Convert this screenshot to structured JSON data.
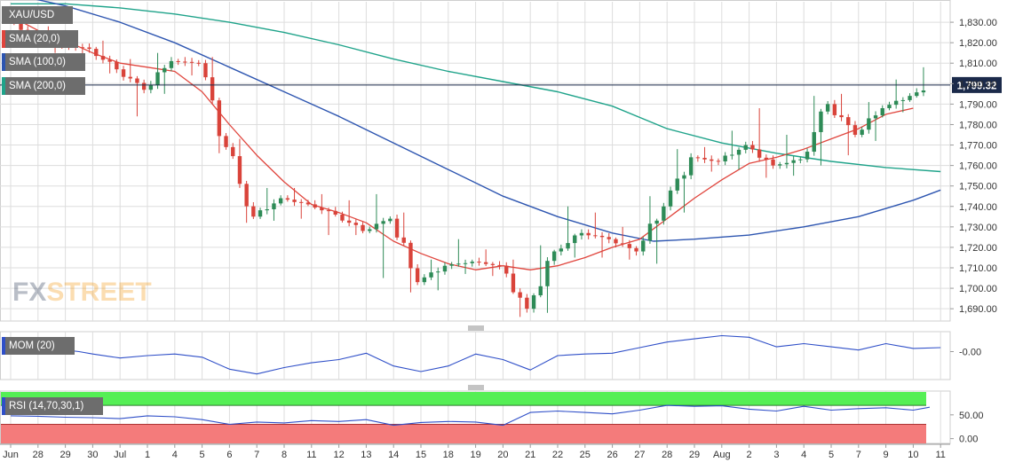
{
  "symbol": "XAU/USD",
  "watermark": {
    "part1": "FX",
    "part2": "STREET"
  },
  "colors": {
    "up": "#2e8b57",
    "down": "#d9433a",
    "sma20": "#e0453d",
    "sma100": "#2d55b0",
    "sma200": "#1fa38a",
    "mom": "#2f4fc8",
    "rsi_line": "#2f4fc8",
    "overbought": "#55ef55",
    "oversold": "#f47b7b",
    "price_line": "#1b2a4a",
    "grid": "#dddddd"
  },
  "price_label": "1,799.32",
  "chart_data": [
    {
      "type": "candlestick",
      "title": "XAU/USD",
      "series_names": [
        "SMA (20,0)",
        "SMA (100,0)",
        "SMA (200,0)"
      ],
      "ylim": [
        1684,
        1840
      ],
      "y_ticks": [
        "1,830.00",
        "1,820.00",
        "1,810.00",
        "1,800.00",
        "1,790.00",
        "1,780.00",
        "1,770.00",
        "1,760.00",
        "1,750.00",
        "1,740.00",
        "1,730.00",
        "1,720.00",
        "1,710.00",
        "1,700.00",
        "1,690.00"
      ],
      "y_tick_values": [
        1830,
        1820,
        1810,
        1800,
        1790,
        1780,
        1770,
        1760,
        1750,
        1740,
        1730,
        1720,
        1710,
        1700,
        1690
      ],
      "x_labels": [
        "Jun",
        "28",
        "29",
        "30",
        "Jul",
        "1",
        "4",
        "5",
        "6",
        "7",
        "8",
        "11",
        "12",
        "13",
        "14",
        "15",
        "18",
        "19",
        "20",
        "21",
        "22",
        "25",
        "26",
        "27",
        "28",
        "29",
        "Aug",
        "2",
        "3",
        "4",
        "5",
        "7",
        "9",
        "10",
        "11"
      ],
      "x_label_days": [
        0,
        1,
        2,
        3,
        4,
        5,
        6,
        7,
        8,
        9,
        10,
        11,
        12,
        13,
        14,
        15,
        16,
        17,
        18,
        19,
        20,
        21,
        22,
        23,
        24,
        25,
        26,
        27,
        28,
        29,
        30,
        31,
        32,
        33,
        34
      ],
      "last_price": 1799.32,
      "day_ohlc": [
        [
          1832,
          1836,
          1818,
          1822
        ],
        [
          1822,
          1828,
          1815,
          1819
        ],
        [
          1819,
          1823,
          1813,
          1817
        ],
        [
          1817,
          1821,
          1805,
          1807
        ],
        [
          1807,
          1812,
          1784,
          1797
        ],
        [
          1797,
          1815,
          1795,
          1811
        ],
        [
          1811,
          1813,
          1804,
          1810
        ],
        [
          1810,
          1813,
          1766,
          1769
        ],
        [
          1769,
          1773,
          1732,
          1735
        ],
        [
          1735,
          1749,
          1733,
          1744
        ],
        [
          1744,
          1749,
          1734,
          1741
        ],
        [
          1741,
          1746,
          1726,
          1736
        ],
        [
          1736,
          1743,
          1726,
          1728
        ],
        [
          1728,
          1746,
          1705,
          1734
        ],
        [
          1734,
          1737,
          1698,
          1703
        ],
        [
          1703,
          1714,
          1699,
          1711
        ],
        [
          1711,
          1724,
          1707,
          1713
        ],
        [
          1713,
          1719,
          1706,
          1711
        ],
        [
          1711,
          1714,
          1686,
          1690
        ],
        [
          1690,
          1721,
          1688,
          1718
        ],
        [
          1718,
          1740,
          1715,
          1727
        ],
        [
          1727,
          1737,
          1715,
          1724
        ],
        [
          1724,
          1730,
          1714,
          1718
        ],
        [
          1718,
          1745,
          1712,
          1740
        ],
        [
          1740,
          1768,
          1737,
          1764
        ],
        [
          1764,
          1769,
          1757,
          1762
        ],
        [
          1762,
          1777,
          1758,
          1770
        ],
        [
          1770,
          1788,
          1754,
          1760
        ],
        [
          1760,
          1775,
          1755,
          1763
        ],
        [
          1763,
          1794,
          1760,
          1790
        ],
        [
          1790,
          1795,
          1765,
          1775
        ],
        [
          1775,
          1791,
          1772,
          1788
        ],
        [
          1788,
          1802,
          1786,
          1794
        ],
        [
          1794,
          1808,
          1789,
          1799
        ]
      ],
      "sma_20_points": [
        [
          0,
          1833
        ],
        [
          1,
          1826
        ],
        [
          2,
          1821
        ],
        [
          3,
          1815
        ],
        [
          4,
          1810
        ],
        [
          5,
          1808
        ],
        [
          6,
          1806
        ],
        [
          7,
          1796
        ],
        [
          8,
          1780
        ],
        [
          9,
          1765
        ],
        [
          10,
          1752
        ],
        [
          11,
          1741
        ],
        [
          12,
          1737
        ],
        [
          13,
          1732
        ],
        [
          14,
          1723
        ],
        [
          15,
          1717
        ],
        [
          16,
          1712
        ],
        [
          17,
          1709
        ],
        [
          18,
          1711
        ],
        [
          19,
          1709
        ],
        [
          20,
          1711
        ],
        [
          21,
          1715
        ],
        [
          22,
          1720
        ],
        [
          23,
          1724
        ],
        [
          24,
          1734
        ],
        [
          25,
          1744
        ],
        [
          26,
          1753
        ],
        [
          27,
          1761
        ],
        [
          28,
          1764
        ],
        [
          29,
          1768
        ],
        [
          30,
          1773
        ],
        [
          31,
          1778
        ],
        [
          32,
          1785
        ],
        [
          33,
          1788
        ]
      ],
      "sma_100_points": [
        [
          0,
          1844
        ],
        [
          2,
          1838
        ],
        [
          4,
          1830
        ],
        [
          6,
          1820
        ],
        [
          8,
          1808
        ],
        [
          10,
          1796
        ],
        [
          12,
          1784
        ],
        [
          14,
          1771
        ],
        [
          16,
          1758
        ],
        [
          18,
          1745
        ],
        [
          20,
          1735
        ],
        [
          22,
          1727
        ],
        [
          23.5,
          1723
        ],
        [
          25,
          1724
        ],
        [
          27,
          1726
        ],
        [
          29,
          1730
        ],
        [
          31,
          1735
        ],
        [
          33,
          1743
        ],
        [
          34,
          1748
        ]
      ],
      "sma_200_points": [
        [
          0,
          1839
        ],
        [
          2,
          1839
        ],
        [
          4,
          1837
        ],
        [
          6,
          1834
        ],
        [
          8,
          1830
        ],
        [
          10,
          1825
        ],
        [
          12,
          1819
        ],
        [
          14,
          1812
        ],
        [
          16,
          1806
        ],
        [
          18,
          1801
        ],
        [
          20,
          1796
        ],
        [
          22,
          1789
        ],
        [
          24,
          1778
        ],
        [
          26,
          1771
        ],
        [
          28,
          1766
        ],
        [
          30,
          1762
        ],
        [
          32,
          1759
        ],
        [
          34,
          1757
        ]
      ]
    },
    {
      "type": "line",
      "title": "MOM (20)",
      "series_names": [
        "MOM (20)"
      ],
      "y_ticks": [
        "-0.00"
      ],
      "y_tick_values": [
        0
      ],
      "ylim": [
        -35,
        25
      ],
      "points": [
        [
          0,
          2
        ],
        [
          1,
          1
        ],
        [
          2,
          2
        ],
        [
          2.5,
          0
        ],
        [
          3,
          -3
        ],
        [
          4,
          -8
        ],
        [
          5,
          -5
        ],
        [
          6,
          -3
        ],
        [
          7,
          -7
        ],
        [
          8,
          -22
        ],
        [
          9,
          -28
        ],
        [
          10,
          -20
        ],
        [
          11,
          -14
        ],
        [
          12,
          -10
        ],
        [
          13,
          -2
        ],
        [
          14,
          -18
        ],
        [
          15,
          -25
        ],
        [
          16,
          -18
        ],
        [
          17,
          -3
        ],
        [
          18,
          -10
        ],
        [
          19,
          -23
        ],
        [
          20,
          -5
        ],
        [
          21,
          -3
        ],
        [
          22,
          -2
        ],
        [
          23,
          5
        ],
        [
          24,
          12
        ],
        [
          25,
          16
        ],
        [
          26,
          20
        ],
        [
          27,
          18
        ],
        [
          28,
          6
        ],
        [
          29,
          10
        ],
        [
          30,
          6
        ],
        [
          31,
          2
        ],
        [
          32,
          10
        ],
        [
          33,
          4
        ],
        [
          34,
          5
        ]
      ]
    },
    {
      "type": "line",
      "title": "RSI (14,70,30,1)",
      "series_names": [
        "RSI (14,70,30,1)"
      ],
      "y_ticks": [
        "50.00",
        "0.00"
      ],
      "y_tick_values": [
        50,
        0
      ],
      "ylim": [
        -10,
        100
      ],
      "overbought_level": 70,
      "oversold_level": 30,
      "points": [
        [
          0,
          48
        ],
        [
          1,
          47
        ],
        [
          2,
          45
        ],
        [
          3,
          44
        ],
        [
          4,
          42
        ],
        [
          5,
          48
        ],
        [
          6,
          46
        ],
        [
          7,
          40
        ],
        [
          8,
          30
        ],
        [
          9,
          35
        ],
        [
          10,
          33
        ],
        [
          11,
          38
        ],
        [
          12,
          36
        ],
        [
          13,
          40
        ],
        [
          14,
          28
        ],
        [
          15,
          34
        ],
        [
          16,
          36
        ],
        [
          17,
          35
        ],
        [
          18,
          28
        ],
        [
          19,
          55
        ],
        [
          20,
          58
        ],
        [
          21,
          55
        ],
        [
          22,
          52
        ],
        [
          23,
          60
        ],
        [
          24,
          70
        ],
        [
          25,
          68
        ],
        [
          26,
          69
        ],
        [
          27,
          62
        ],
        [
          28,
          58
        ],
        [
          29,
          68
        ],
        [
          30,
          60
        ],
        [
          31,
          63
        ],
        [
          32,
          65
        ],
        [
          33,
          60
        ],
        [
          33.6,
          66
        ]
      ]
    }
  ]
}
